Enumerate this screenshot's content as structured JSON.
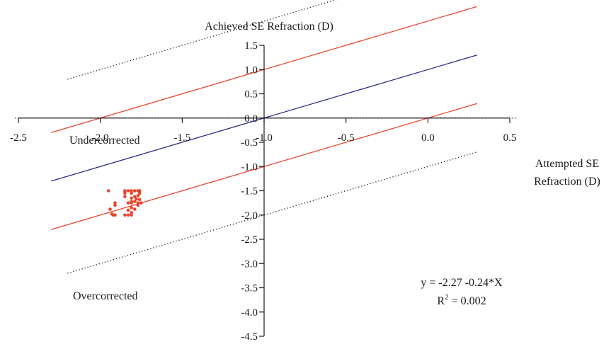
{
  "chart_data": {
    "type": "scatter",
    "x_axis": {
      "label_line1": "Attempted SE",
      "label_line2": "Refraction (D)",
      "range": [
        -2.5,
        0.5
      ],
      "ticks": [
        "-2.5",
        "-2.0",
        "-1.5",
        "-1.0",
        "-0.5",
        "0.0",
        "0.5"
      ]
    },
    "y_axis": {
      "label": "Achieved SE Refraction (D)",
      "range": [
        -4.5,
        1.5
      ],
      "ticks": [
        "1.5",
        "1.0",
        "0.5",
        "0.0",
        "-0.5",
        "-1.0",
        "-1.5",
        "-2.0",
        "-2.5",
        "-3.0",
        "-3.5",
        "-4.0",
        "-4.5"
      ]
    },
    "points": [
      {
        "x": -1.95,
        "y": -1.5
      },
      {
        "x": -1.85,
        "y": -1.5
      },
      {
        "x": -1.83,
        "y": -1.5
      },
      {
        "x": -1.81,
        "y": -1.5
      },
      {
        "x": -1.79,
        "y": -1.5
      },
      {
        "x": -1.77,
        "y": -1.5
      },
      {
        "x": -1.76,
        "y": -1.5
      },
      {
        "x": -1.85,
        "y": -1.55
      },
      {
        "x": -1.81,
        "y": -1.55
      },
      {
        "x": -1.76,
        "y": -1.55
      },
      {
        "x": -1.77,
        "y": -1.6
      },
      {
        "x": -1.79,
        "y": -1.62
      },
      {
        "x": -1.85,
        "y": -1.62
      },
      {
        "x": -1.81,
        "y": -1.65
      },
      {
        "x": -1.78,
        "y": -1.67
      },
      {
        "x": -1.76,
        "y": -1.68
      },
      {
        "x": -1.81,
        "y": -1.72
      },
      {
        "x": -1.79,
        "y": -1.72
      },
      {
        "x": -1.83,
        "y": -1.75
      },
      {
        "x": -1.81,
        "y": -1.75
      },
      {
        "x": -1.91,
        "y": -1.75
      },
      {
        "x": -1.77,
        "y": -1.75
      },
      {
        "x": -1.75,
        "y": -1.75
      },
      {
        "x": -1.91,
        "y": -1.8
      },
      {
        "x": -1.81,
        "y": -1.85
      },
      {
        "x": -1.77,
        "y": -1.8
      },
      {
        "x": -1.94,
        "y": -1.88
      },
      {
        "x": -1.83,
        "y": -1.9
      },
      {
        "x": -1.79,
        "y": -1.88
      },
      {
        "x": -1.81,
        "y": -1.95
      },
      {
        "x": -1.93,
        "y": -1.98
      },
      {
        "x": -1.92,
        "y": -2.0
      },
      {
        "x": -1.91,
        "y": -2.0
      },
      {
        "x": -1.85,
        "y": -2.0
      },
      {
        "x": -1.83,
        "y": -2.0
      },
      {
        "x": -1.81,
        "y": -2.0
      }
    ],
    "lines": [
      {
        "kind": "identity",
        "color": "#2b2b8a",
        "style": "solid",
        "slope": 1,
        "intercept": 0,
        "x_range": [
          -2.3,
          0.3
        ]
      },
      {
        "kind": "plus_1D",
        "color": "#e8452c",
        "style": "solid",
        "slope": 1,
        "intercept": 1,
        "x_range": [
          -2.3,
          0.3
        ]
      },
      {
        "kind": "minus_1D",
        "color": "#e8452c",
        "style": "solid",
        "slope": 1,
        "intercept": -1,
        "x_range": [
          -2.3,
          0.3
        ]
      },
      {
        "kind": "plus_2D",
        "color": "#1a1a1a",
        "style": "dotted",
        "slope": 1,
        "intercept": 2,
        "x_range": [
          -2.2,
          0.3
        ]
      },
      {
        "kind": "minus_2D",
        "color": "#1a1a1a",
        "style": "dotted",
        "slope": 1,
        "intercept": -2,
        "x_range": [
          -2.2,
          0.3
        ]
      },
      {
        "kind": "zero_hline",
        "color": "#1a1a1a",
        "style": "dotted",
        "slope": 0,
        "intercept": 0,
        "x_range": [
          -2.52,
          0.55
        ]
      }
    ],
    "annotations": {
      "under": "Undercorrected",
      "over": "Overcorrected",
      "equation": "y = -2.27 -0.24*X",
      "r2_prefix": "R",
      "r2_sup": "2",
      "r2_value": " = 0.002"
    },
    "colors": {
      "points": "#e8452c",
      "axis": "#1a1a1a"
    },
    "grid": false
  }
}
